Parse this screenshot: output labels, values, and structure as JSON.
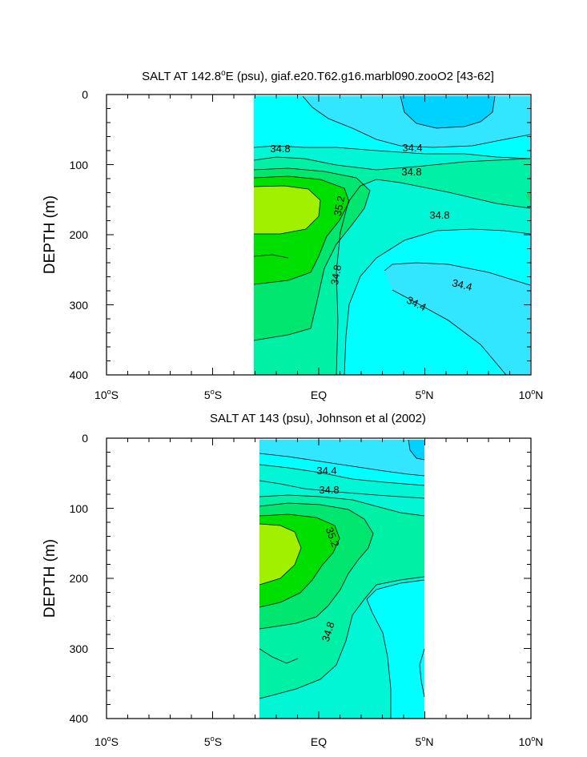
{
  "chart_data": [
    {
      "type": "heatmap",
      "title": "SALT AT 142.8°E (psu), giaf.e20.T62.g16.marbl090.zooO2 [43-62]",
      "title_parts": {
        "before": "SALT AT 142.8",
        "degree": "o",
        "after": "E (psu), giaf.e20.T62.g16.marbl090.zooO2 [43-62]"
      },
      "xlabel": "",
      "ylabel": "DEPTH (m)",
      "xlim": [
        -10,
        10
      ],
      "ylim": [
        400,
        0
      ],
      "y_ticks": [
        "0",
        "100",
        "200",
        "300",
        "400"
      ],
      "x_ticks": [
        {
          "num": "10",
          "deg": "o",
          "hemi": "S"
        },
        {
          "num": "5",
          "deg": "o",
          "hemi": "S"
        },
        {
          "num": "EQ",
          "deg": "",
          "hemi": ""
        },
        {
          "num": "5",
          "deg": "o",
          "hemi": "N"
        },
        {
          "num": "10",
          "deg": "o",
          "hemi": "N"
        }
      ],
      "data_extent": {
        "lat_min": -3,
        "lat_max": 10,
        "depth_min": 5,
        "depth_max": 400
      },
      "contour_labels": [
        "34.8",
        "34.4",
        "34.8",
        "35.2",
        "34.8",
        "34.8",
        "34.4",
        "34.4"
      ],
      "colors": {
        "lt_34_2": "#00d2ff",
        "c34_2_34_4": "#33e6ff",
        "c34_4_34_6": "#00ffff",
        "c34_6_34_8": "#00f6d5",
        "c34_8_35_0": "#00f0a5",
        "c35_0_35_2": "#00e66f",
        "c35_2_35_4": "#00e000",
        "gt_35_4": "#a0f000"
      },
      "grid": false,
      "legend": "none"
    },
    {
      "type": "heatmap",
      "title": "SALT AT 143 (psu), Johnson et al (2002)",
      "xlabel": "",
      "ylabel": "DEPTH (m)",
      "xlim": [
        -10,
        10
      ],
      "ylim": [
        400,
        0
      ],
      "y_ticks": [
        "0",
        "100",
        "200",
        "300",
        "400"
      ],
      "x_ticks": [
        {
          "num": "10",
          "deg": "o",
          "hemi": "S"
        },
        {
          "num": "5",
          "deg": "o",
          "hemi": "S"
        },
        {
          "num": "EQ",
          "deg": "",
          "hemi": ""
        },
        {
          "num": "5",
          "deg": "o",
          "hemi": "N"
        },
        {
          "num": "10",
          "deg": "o",
          "hemi": "N"
        }
      ],
      "data_extent": {
        "lat_min": -2.7,
        "lat_max": 5,
        "depth_min": 5,
        "depth_max": 400
      },
      "contour_labels": [
        "34.4",
        "34.8",
        "35.2",
        "34.8"
      ],
      "grid": false,
      "legend": "none"
    }
  ]
}
